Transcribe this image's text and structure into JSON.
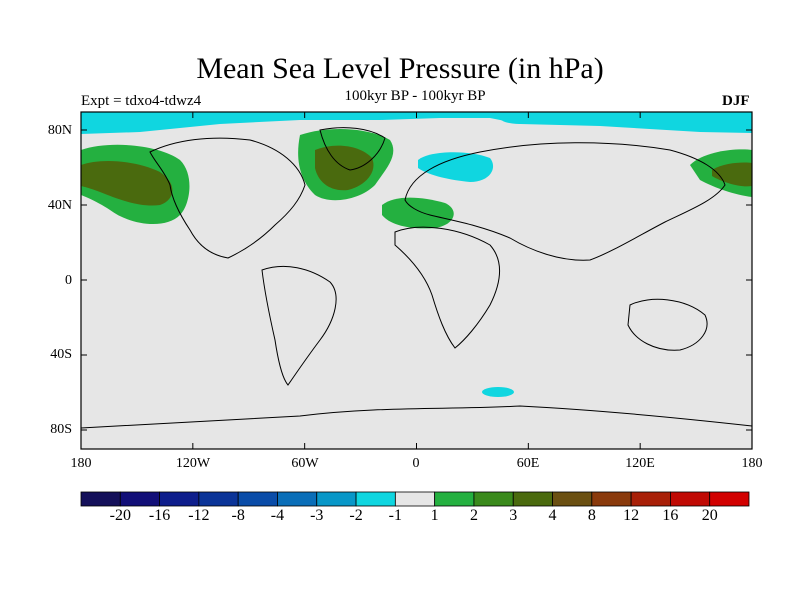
{
  "title": "Mean Sea Level Pressure (in hPa)",
  "subtitle": "100kyr BP - 100kyr BP",
  "experiment": "Expt = tdxo4-tdwz4",
  "season": "DJF",
  "lat_ticks": [
    "80N",
    "40N",
    "0",
    "40S",
    "80S"
  ],
  "lon_ticks": [
    "180",
    "120W",
    "60W",
    "0",
    "60E",
    "120E",
    "180"
  ],
  "colorbar": {
    "labels": [
      "-20",
      "-16",
      "-12",
      "-8",
      "-4",
      "-3",
      "-2",
      "-1",
      "1",
      "2",
      "3",
      "4",
      "8",
      "12",
      "16",
      "20"
    ],
    "colors": [
      "#14105a",
      "#120f78",
      "#0e1e8c",
      "#0b3498",
      "#0a4ca8",
      "#0a6eb8",
      "#0897c8",
      "#10d6e0",
      "#e6e6e6",
      "#24b040",
      "#3a8a1c",
      "#4a6a0e",
      "#6b5012",
      "#8a3a0c",
      "#a82008",
      "#c00a04",
      "#d20000"
    ]
  },
  "colors": {
    "background": "#e6e6e6",
    "positive_1_2": "#24b040",
    "positive_3_4": "#4a6a0e",
    "negative_1_2": "#10d6e0"
  }
}
